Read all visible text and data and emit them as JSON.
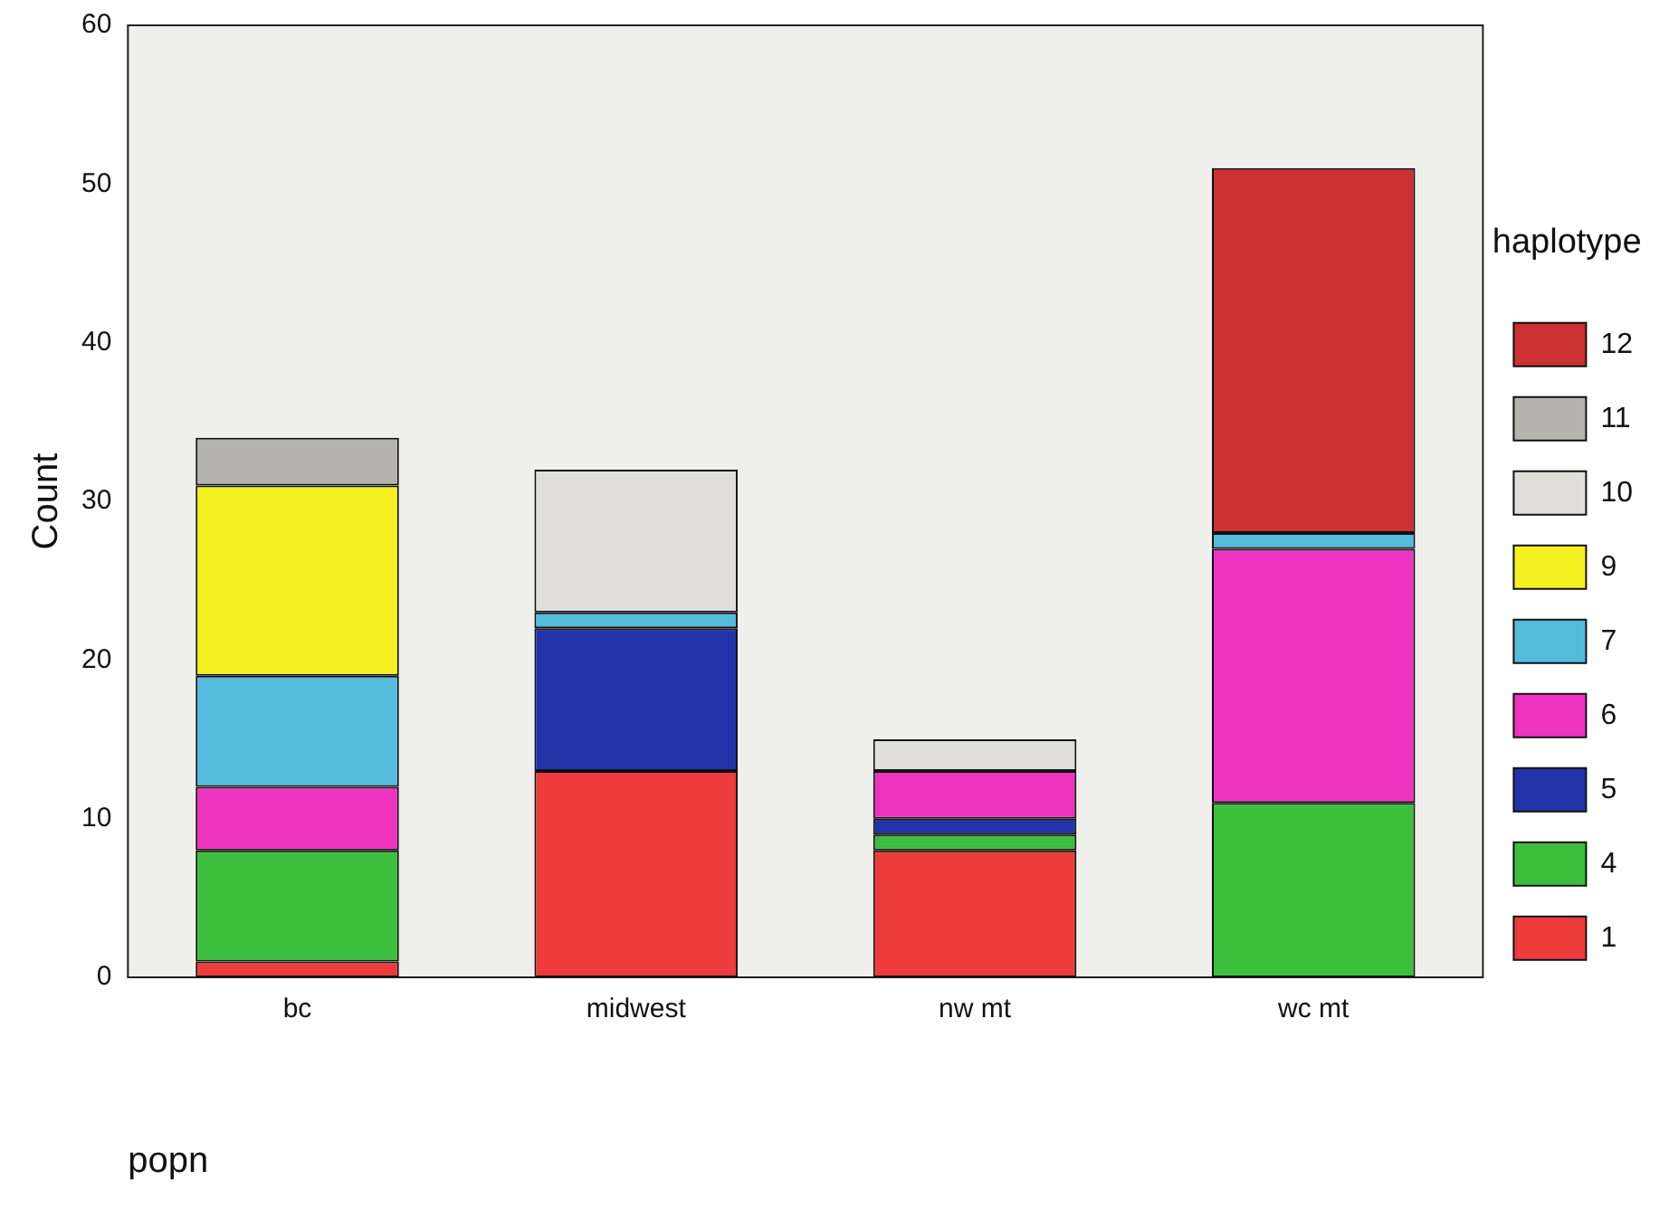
{
  "chart_data": {
    "type": "bar",
    "stacked": true,
    "xlabel": "popn",
    "ylabel": "Count",
    "legend_title": "haplotype",
    "legend": "right",
    "categories": [
      "bc",
      "midwest",
      "nw mt",
      "wc mt"
    ],
    "ylim": [
      0,
      60
    ],
    "yticks": [
      0,
      10,
      20,
      30,
      40,
      50,
      60
    ],
    "grid": false,
    "series": [
      {
        "name": "1",
        "color": "#ee3b3b",
        "values": [
          1,
          13,
          8,
          0
        ]
      },
      {
        "name": "4",
        "color": "#3cbf3c",
        "values": [
          7,
          0,
          1,
          11
        ]
      },
      {
        "name": "5",
        "color": "#2233aa",
        "values": [
          0,
          9,
          1,
          0
        ]
      },
      {
        "name": "6",
        "color": "#ee33c0",
        "values": [
          4,
          0,
          3,
          16
        ]
      },
      {
        "name": "7",
        "color": "#55bbdd",
        "values": [
          7,
          1,
          0,
          1
        ]
      },
      {
        "name": "9",
        "color": "#f5f020",
        "values": [
          12,
          0,
          0,
          0
        ]
      },
      {
        "name": "10",
        "color": "#e0deda",
        "values": [
          0,
          9,
          2,
          0
        ]
      },
      {
        "name": "11",
        "color": "#b5b3ad",
        "values": [
          3,
          0,
          0,
          0
        ]
      },
      {
        "name": "12",
        "color": "#cc3030",
        "values": [
          0,
          0,
          0,
          23
        ]
      }
    ]
  }
}
